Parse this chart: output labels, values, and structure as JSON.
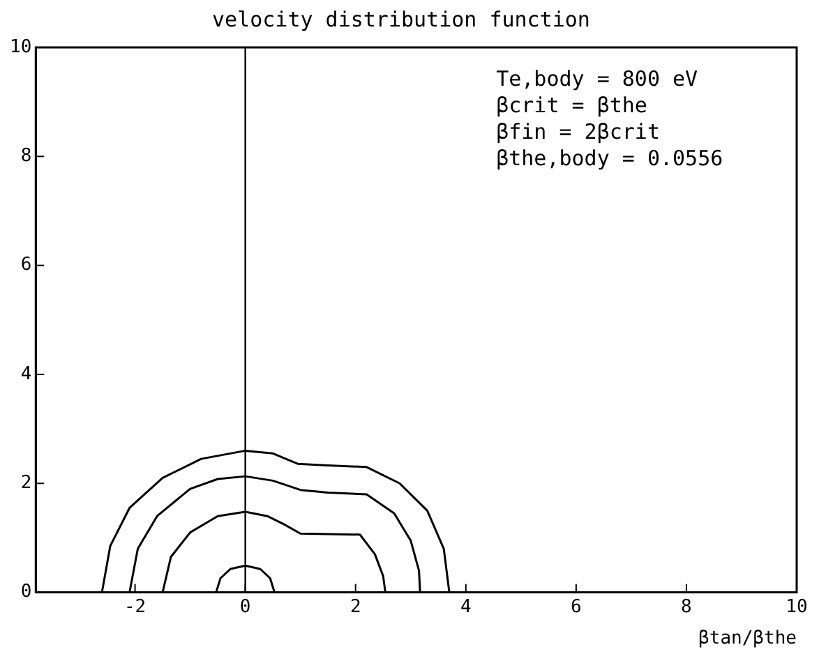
{
  "chart_data": {
    "type": "line",
    "title": "velocity distribution function",
    "xlabel": "βtan/βthe",
    "xlim": [
      -3.8,
      10
    ],
    "xticks": [
      -2,
      0,
      2,
      4,
      6,
      8,
      10
    ],
    "ylim": [
      0,
      10
    ],
    "yticks": [
      0,
      2,
      4,
      6,
      8,
      10
    ],
    "grid": false,
    "legend": false,
    "marker": "none",
    "line_style": "solid",
    "ref_lines": [
      {
        "axis": "x",
        "value": 0,
        "color": "#000000"
      }
    ],
    "annotations": [
      "Te,body = 800 eV",
      "βcrit = βthe",
      "βfin = 2βcrit",
      "βthe,body = 0.0556"
    ],
    "series": [
      {
        "color": "#000000",
        "x": [
          -2.6,
          -2.45,
          -2.1,
          -1.5,
          -0.8,
          0,
          0.5,
          0.95,
          1.5,
          2.2,
          2.8,
          3.3,
          3.6,
          3.7
        ],
        "values": [
          0,
          0.85,
          1.55,
          2.1,
          2.45,
          2.6,
          2.55,
          2.36,
          2.33,
          2.3,
          2.0,
          1.5,
          0.8,
          0
        ]
      },
      {
        "color": "#000000",
        "x": [
          -2.1,
          -1.95,
          -1.6,
          -1.0,
          -0.5,
          0,
          0.5,
          1.0,
          1.5,
          2.2,
          2.7,
          3.0,
          3.15,
          3.17
        ],
        "values": [
          0,
          0.8,
          1.4,
          1.9,
          2.08,
          2.13,
          2.05,
          1.88,
          1.83,
          1.8,
          1.45,
          0.95,
          0.4,
          0
        ]
      },
      {
        "color": "#000000",
        "x": [
          -1.5,
          -1.35,
          -1.0,
          -0.5,
          0,
          0.4,
          0.7,
          1.0,
          1.5,
          2.08,
          2.35,
          2.5,
          2.54
        ],
        "values": [
          0,
          0.65,
          1.1,
          1.4,
          1.48,
          1.4,
          1.25,
          1.08,
          1.07,
          1.06,
          0.7,
          0.3,
          0
        ]
      },
      {
        "color": "#000000",
        "x": [
          -0.53,
          -0.45,
          -0.27,
          0,
          0.27,
          0.45,
          0.53
        ],
        "values": [
          0,
          0.26,
          0.43,
          0.49,
          0.43,
          0.26,
          0
        ]
      }
    ]
  }
}
